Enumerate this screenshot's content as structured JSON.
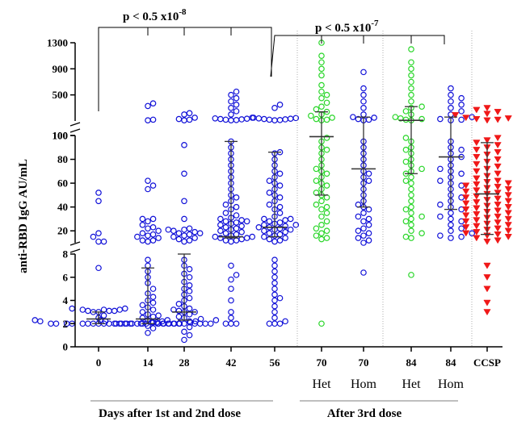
{
  "chart_data": {
    "type": "scatter",
    "subtype": "dot-plot with mean and SD error bars, broken y axis (three segments)",
    "ylabel": "anti-RBD IgG AU/mL",
    "y_axis": {
      "segments": [
        {
          "range": [
            0,
            8
          ],
          "ticks": [
            "0",
            "2",
            "4",
            "6",
            "8"
          ]
        },
        {
          "range": [
            10,
            100
          ],
          "ticks": [
            "20",
            "40",
            "60",
            "80",
            "100"
          ]
        },
        {
          "range": [
            100,
            1300
          ],
          "ticks": [
            "100",
            "500",
            "900",
            "1300"
          ]
        }
      ]
    },
    "colors": {
      "blue": "#1010d8",
      "green": "#2ad62a",
      "red": "#f01818",
      "axis": "#000000",
      "error_bar": "#333333"
    },
    "categories": [
      {
        "label": "0",
        "sub": "",
        "color": "blue",
        "marker": "open-circle",
        "mean": 2.4,
        "sd_low": 2.0,
        "sd_high": 3.0,
        "values": [
          2,
          2,
          2,
          2,
          2,
          2,
          2,
          2,
          2,
          2,
          2,
          2,
          2,
          2,
          2,
          2,
          2.1,
          2.1,
          2.2,
          2.2,
          2.3,
          2.3,
          2.5,
          2.7,
          3.0,
          3.0,
          3.1,
          3.1,
          3.1,
          3.2,
          3.2,
          3.2,
          3.3,
          3.3,
          6.8,
          11,
          11,
          15,
          18,
          45,
          52
        ]
      },
      {
        "label": "14",
        "sub": "",
        "color": "blue",
        "marker": "open-circle",
        "mean": 2.4,
        "sd_low": 2.0,
        "sd_high": 6.8,
        "values": [
          1.2,
          1.6,
          1.8,
          2,
          2,
          2,
          2,
          2,
          2,
          2,
          2,
          2,
          2,
          2,
          2.1,
          2.1,
          2.2,
          2.2,
          2.3,
          2.3,
          2.4,
          2.5,
          2.6,
          2.7,
          2.8,
          3.0,
          3.2,
          3.4,
          3.6,
          3.8,
          4.0,
          4.3,
          4.6,
          5.0,
          5.5,
          6.0,
          6.5,
          7.0,
          7.5,
          11,
          12,
          12,
          14,
          15,
          16,
          17,
          18,
          20,
          22,
          23,
          25,
          28,
          30,
          30,
          55,
          58,
          62,
          110,
          120,
          330,
          370
        ]
      },
      {
        "label": "28",
        "sub": "",
        "color": "blue",
        "marker": "open-circle",
        "mean": 3.0,
        "sd_low": 2.3,
        "sd_high": 8.0,
        "values": [
          0.6,
          1.0,
          1.3,
          1.7,
          2,
          2,
          2,
          2,
          2,
          2,
          2,
          2,
          2,
          2,
          2.2,
          2.3,
          2.5,
          2.6,
          2.8,
          3.0,
          3.0,
          3.1,
          3.2,
          3.3,
          3.5,
          3.7,
          4.0,
          4.2,
          4.5,
          4.8,
          5.0,
          5.3,
          5.6,
          6.0,
          6.3,
          6.7,
          7.0,
          7.5,
          11,
          12,
          13,
          14,
          15,
          16,
          17,
          18,
          18,
          19,
          20,
          21,
          21,
          22,
          30,
          45,
          68,
          92,
          110,
          120,
          130,
          150,
          200,
          220
        ]
      },
      {
        "label": "42",
        "sub": "",
        "color": "blue",
        "marker": "open-circle",
        "mean": 15.0,
        "sd_low": 14.0,
        "sd_high": 95.0,
        "values": [
          2,
          2,
          2,
          2.5,
          3.0,
          4.0,
          5.0,
          5.8,
          6.2,
          7.0,
          11,
          12,
          12,
          13,
          14,
          14,
          15,
          15,
          16,
          17,
          18,
          19,
          20,
          21,
          22,
          23,
          24,
          25,
          26,
          27,
          28,
          28,
          29,
          30,
          31,
          33,
          35,
          38,
          40,
          42,
          45,
          48,
          50,
          55,
          60,
          65,
          70,
          75,
          80,
          85,
          90,
          95,
          110,
          115,
          120,
          125,
          130,
          135,
          140,
          150,
          200,
          250,
          300,
          350,
          400,
          450,
          500,
          550
        ]
      },
      {
        "label": "56",
        "sub": "",
        "color": "blue",
        "marker": "open-circle",
        "mean": 23.0,
        "sd_low": 15.0,
        "sd_high": 86.0,
        "values": [
          2,
          2,
          2,
          2.2,
          2.5,
          3.0,
          3.5,
          4.0,
          4.2,
          4.5,
          5.0,
          5.5,
          6.0,
          6.5,
          7.0,
          7.5,
          11,
          12,
          13,
          14,
          15,
          16,
          17,
          18,
          19,
          20,
          21,
          21,
          22,
          23,
          23,
          24,
          25,
          25,
          26,
          27,
          28,
          29,
          30,
          30,
          32,
          35,
          38,
          40,
          42,
          45,
          48,
          50,
          52,
          55,
          58,
          60,
          62,
          65,
          68,
          70,
          75,
          80,
          85,
          86,
          110,
          115,
          120,
          125,
          130,
          135,
          140,
          145,
          150,
          300,
          350
        ]
      },
      {
        "label": "70",
        "sub": "Het",
        "color": "green",
        "marker": "open-circle",
        "mean": 99.0,
        "sd_low": 50.0,
        "sd_high": 240.0,
        "values": [
          2,
          13,
          14,
          16,
          18,
          20,
          22,
          25,
          28,
          32,
          35,
          38,
          40,
          42,
          45,
          48,
          50,
          52,
          55,
          58,
          60,
          62,
          65,
          68,
          70,
          72,
          75,
          80,
          85,
          88,
          90,
          95,
          98,
          110,
          120,
          130,
          150,
          180,
          200,
          240,
          280,
          320,
          380,
          450,
          500,
          550,
          650,
          800,
          900,
          1000,
          1100,
          1300
        ]
      },
      {
        "label": "70",
        "sub": "Hom",
        "color": "blue",
        "marker": "open-circle",
        "mean": 72.0,
        "sd_low": 40.0,
        "sd_high": 160.0,
        "values": [
          6.4,
          10,
          12,
          14,
          16,
          18,
          20,
          22,
          25,
          28,
          30,
          32,
          35,
          38,
          40,
          42,
          45,
          50,
          55,
          60,
          62,
          65,
          68,
          70,
          75,
          80,
          85,
          90,
          95,
          110,
          120,
          130,
          150,
          160,
          200,
          300,
          400,
          500,
          600,
          850
        ]
      },
      {
        "label": "84",
        "sub": "Het",
        "color": "green",
        "marker": "open-circle",
        "mean": 110.0,
        "sd_low": 68.0,
        "sd_high": 320.0,
        "values": [
          6.2,
          14,
          15,
          18,
          20,
          25,
          28,
          30,
          32,
          35,
          38,
          40,
          45,
          50,
          55,
          60,
          62,
          65,
          68,
          70,
          72,
          75,
          78,
          80,
          85,
          88,
          90,
          95,
          98,
          110,
          120,
          130,
          140,
          160,
          200,
          250,
          300,
          320,
          400,
          500,
          600,
          700,
          800,
          900,
          1000,
          1200
        ]
      },
      {
        "label": "84",
        "sub": "Hom",
        "color": "blue",
        "marker": "open-circle",
        "mean": 82.0,
        "sd_low": 38.0,
        "sd_high": 160.0,
        "values": [
          14,
          15,
          16,
          18,
          20,
          22,
          25,
          28,
          30,
          32,
          35,
          38,
          40,
          42,
          45,
          48,
          50,
          55,
          58,
          60,
          62,
          65,
          68,
          70,
          72,
          75,
          80,
          82,
          85,
          88,
          90,
          95,
          110,
          120,
          130,
          160,
          200,
          250,
          300,
          350,
          400,
          450,
          500,
          600
        ]
      },
      {
        "label": "CCSP",
        "sub": "",
        "color": "red",
        "marker": "filled-triangle-down",
        "mean": 51.0,
        "sd_low": 17.0,
        "sd_high": 94.0,
        "values": [
          3,
          3.8,
          5,
          6,
          7,
          11,
          12,
          14,
          15,
          16,
          17,
          18,
          19,
          20,
          21,
          22,
          23,
          24,
          25,
          26,
          27,
          28,
          29,
          30,
          31,
          32,
          33,
          34,
          35,
          36,
          37,
          38,
          39,
          40,
          41,
          42,
          43,
          44,
          45,
          46,
          47,
          48,
          49,
          50,
          51,
          52,
          53,
          54,
          55,
          56,
          57,
          58,
          59,
          60,
          61,
          62,
          64,
          66,
          68,
          70,
          72,
          74,
          76,
          78,
          80,
          82,
          84,
          86,
          88,
          90,
          92,
          94,
          96,
          98,
          110,
          120,
          130,
          140,
          150,
          170,
          190,
          210,
          240,
          270,
          300
        ]
      }
    ],
    "significance": [
      {
        "text": "p < 0.5 x10",
        "exponent": "-8"
      },
      {
        "text": "p < 0.5 x10",
        "exponent": "-7"
      }
    ],
    "group_labels": [
      "Days after 1st  and 2nd dose",
      "After 3rd dose"
    ],
    "grid": false,
    "legend": "none"
  }
}
